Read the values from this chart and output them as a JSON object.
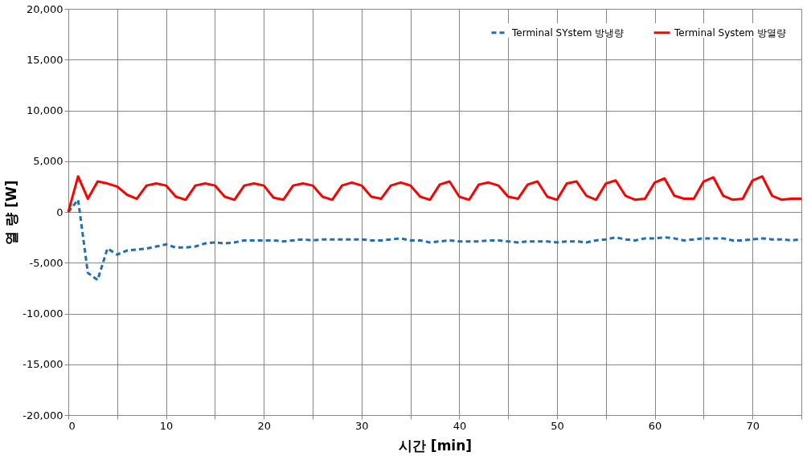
{
  "chart_data": {
    "type": "line",
    "xlabel": "시간  [min]",
    "ylabel": "열 량  [W]",
    "xlim": [
      0,
      75
    ],
    "xticks": [
      0,
      {
        "value": 5,
        "label": null
      },
      10,
      {
        "value": 15,
        "label": null
      },
      20,
      {
        "value": 25,
        "label": null
      },
      30,
      {
        "value": 35,
        "label": null
      },
      40,
      {
        "value": 45,
        "label": null
      },
      50,
      {
        "value": 55,
        "label": null
      },
      60,
      {
        "value": 65,
        "label": null
      },
      70,
      {
        "value": 75,
        "label": null
      }
    ],
    "ylim": [
      -20000,
      20000
    ],
    "yticks": [
      {
        "value": -20000,
        "label": "-20,000"
      },
      {
        "value": -15000,
        "label": "-15,000"
      },
      {
        "value": -10000,
        "label": "-10,000"
      },
      {
        "value": -5000,
        "label": "-5,000"
      },
      0,
      {
        "value": 5000,
        "label": "5,000"
      },
      {
        "value": 10000,
        "label": "10,000"
      },
      {
        "value": 15000,
        "label": "15,000"
      },
      {
        "value": 20000,
        "label": "20,000"
      }
    ],
    "grid": true,
    "legend": "top right",
    "x": [
      0,
      1,
      2,
      3,
      4,
      5,
      6,
      7,
      8,
      9,
      10,
      11,
      12,
      13,
      14,
      15,
      16,
      17,
      18,
      19,
      20,
      21,
      22,
      23,
      24,
      25,
      26,
      27,
      28,
      29,
      30,
      31,
      32,
      33,
      34,
      35,
      36,
      37,
      38,
      39,
      40,
      41,
      42,
      43,
      44,
      45,
      46,
      47,
      48,
      49,
      50,
      51,
      52,
      53,
      54,
      55,
      56,
      57,
      58,
      59,
      60,
      61,
      62,
      63,
      64,
      65,
      66,
      67,
      68,
      69,
      70,
      71,
      72,
      73,
      74,
      75
    ],
    "series": [
      {
        "name": "Terminal SYstem 방냉량",
        "color": "#1f6fb4",
        "line_style": "dashed",
        "values": [
          0,
          1200,
          -6000,
          -6700,
          -3600,
          -4200,
          -3800,
          -3700,
          -3600,
          -3400,
          -3200,
          -3500,
          -3500,
          -3400,
          -3100,
          -3000,
          -3100,
          -3000,
          -2800,
          -2800,
          -2800,
          -2800,
          -2900,
          -2800,
          -2700,
          -2800,
          -2700,
          -2700,
          -2700,
          -2700,
          -2700,
          -2800,
          -2800,
          -2700,
          -2600,
          -2800,
          -2800,
          -3000,
          -2900,
          -2800,
          -2900,
          -2900,
          -2900,
          -2800,
          -2800,
          -2900,
          -3000,
          -2900,
          -2900,
          -2900,
          -3000,
          -2900,
          -2900,
          -3000,
          -2800,
          -2700,
          -2500,
          -2700,
          -2800,
          -2600,
          -2600,
          -2500,
          -2600,
          -2800,
          -2700,
          -2600,
          -2600,
          -2600,
          -2800,
          -2800,
          -2700,
          -2600,
          -2700,
          -2700,
          -2800,
          -2700
        ]
      },
      {
        "name": "Terminal System 방열량",
        "color": "#ff0000",
        "line_style": "solid",
        "values": [
          0,
          3500,
          1300,
          3000,
          2800,
          2500,
          1700,
          1300,
          2600,
          2800,
          2600,
          1500,
          1200,
          2600,
          2800,
          2600,
          1500,
          1200,
          2600,
          2800,
          2600,
          1400,
          1200,
          2600,
          2800,
          2600,
          1500,
          1200,
          2600,
          2900,
          2600,
          1500,
          1300,
          2600,
          2900,
          2600,
          1500,
          1200,
          2700,
          3000,
          1500,
          1200,
          2700,
          2900,
          2600,
          1500,
          1300,
          2700,
          3000,
          1500,
          1200,
          2800,
          3000,
          1600,
          1200,
          2800,
          3100,
          1600,
          1200,
          1300,
          2900,
          3300,
          1600,
          1300,
          1300,
          3000,
          3400,
          1600,
          1200,
          1300,
          3100,
          3500,
          1600,
          1200,
          1300,
          1300
        ]
      }
    ]
  }
}
